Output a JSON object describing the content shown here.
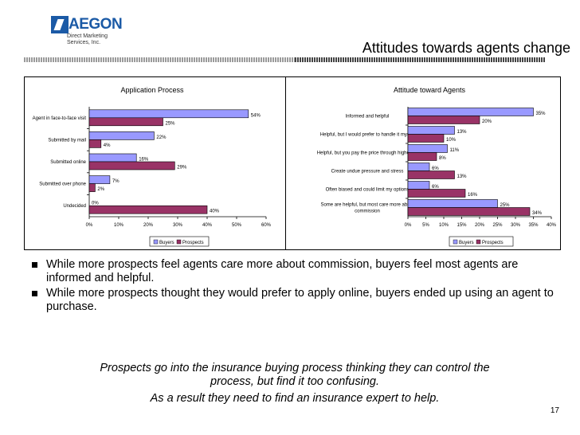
{
  "logo": {
    "word": "AEGON",
    "sub_line1": "Direct Marketing",
    "sub_line2": "Services, Inc."
  },
  "slide_title": "Attitudes towards agents change",
  "legend": {
    "buyers": "Buyers",
    "prospects": "Prospects"
  },
  "colors": {
    "buyers": "#9999ff",
    "prospects": "#993366"
  },
  "chart_data": [
    {
      "type": "bar",
      "orientation": "horizontal",
      "title": "Application Process",
      "categories": [
        "Agent in face-to-face visit",
        "Submitted by mail",
        "Submitted online",
        "Submitted over phone",
        "Undecided"
      ],
      "series": [
        {
          "name": "Buyers",
          "values": [
            54,
            22,
            16,
            7,
            0
          ]
        },
        {
          "name": "Prospects",
          "values": [
            25,
            4,
            29,
            2,
            40
          ]
        }
      ],
      "value_labels": [
        [
          "54%",
          "22%",
          "16%",
          "7%",
          "0%"
        ],
        [
          "25%",
          "4%",
          "29%",
          "2%",
          "40%"
        ]
      ],
      "xlim": [
        0,
        60
      ],
      "xticks": [
        "0%",
        "10%",
        "20%",
        "30%",
        "40%",
        "50%",
        "60%"
      ],
      "legend_position": "bottom"
    },
    {
      "type": "bar",
      "orientation": "horizontal",
      "title": "Attitude toward Agents",
      "categories": [
        [
          "Informed and helpful"
        ],
        [
          "Helpful, but I would prefer to handle it myself"
        ],
        [
          "Helpful, but you pay the price through higher $$"
        ],
        [
          "Create undue pressure and stress"
        ],
        [
          "Often biased and could limit my options"
        ],
        [
          "Some are helpful, but most care more about",
          "commission"
        ]
      ],
      "series": [
        {
          "name": "Buyers",
          "values": [
            35,
            13,
            11,
            6,
            6,
            25
          ]
        },
        {
          "name": "Prospects",
          "values": [
            20,
            10,
            8,
            13,
            16,
            34
          ]
        }
      ],
      "value_labels": [
        [
          "35%",
          "13%",
          "11%",
          "6%",
          "6%",
          "25%"
        ],
        [
          "20%",
          "10%",
          "8%",
          "13%",
          "16%",
          "34%"
        ]
      ],
      "xlim": [
        0,
        40
      ],
      "xticks": [
        "0%",
        "5%",
        "10%",
        "15%",
        "20%",
        "25%",
        "30%",
        "35%",
        "40%"
      ],
      "legend_position": "bottom-right"
    }
  ],
  "bullets": [
    "While more prospects feel agents care more about commission, buyers feel most agents are informed and helpful.",
    "While more prospects thought they would prefer to apply online, buyers ended up using an agent to purchase."
  ],
  "conclusion": {
    "line1": "Prospects go into the insurance buying process thinking they can control the",
    "line2": "process, but find it too confusing.",
    "line3": "As a result they need to find an insurance expert to help."
  },
  "page_number": "17"
}
